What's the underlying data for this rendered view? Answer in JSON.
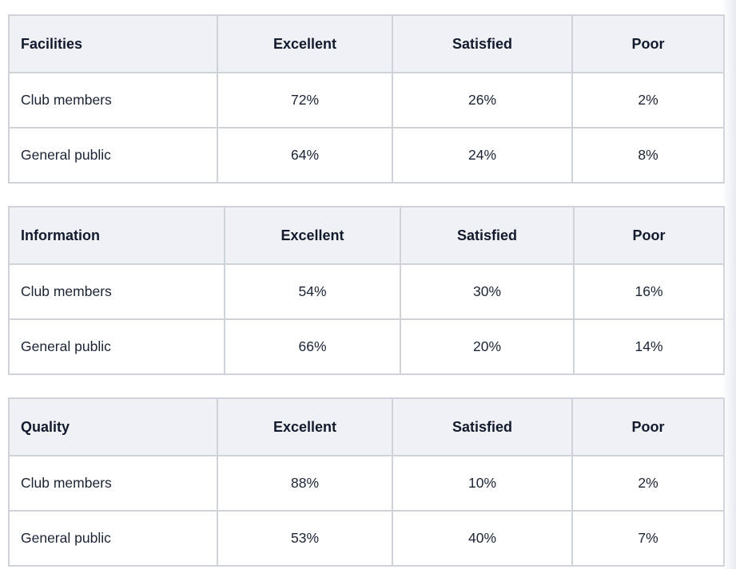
{
  "tables": [
    {
      "title": "Facilities",
      "columns": [
        "Excellent",
        "Satisfied",
        "Poor"
      ],
      "rows": [
        {
          "label": "Club members",
          "values": [
            "72%",
            "26%",
            "2%"
          ]
        },
        {
          "label": "General public",
          "values": [
            "64%",
            "24%",
            "8%"
          ]
        }
      ]
    },
    {
      "title": "Information",
      "columns": [
        "Excellent",
        "Satisfied",
        "Poor"
      ],
      "rows": [
        {
          "label": "Club members",
          "values": [
            "54%",
            "30%",
            "16%"
          ]
        },
        {
          "label": "General public",
          "values": [
            "66%",
            "20%",
            "14%"
          ]
        }
      ]
    },
    {
      "title": "Quality",
      "columns": [
        "Excellent",
        "Satisfied",
        "Poor"
      ],
      "rows": [
        {
          "label": "Club members",
          "values": [
            "88%",
            "10%",
            "2%"
          ]
        },
        {
          "label": "General public",
          "values": [
            "53%",
            "40%",
            "7%"
          ]
        }
      ]
    }
  ],
  "chart_data": {
    "type": "table",
    "tables": [
      {
        "title": "Facilities",
        "categories": [
          "Excellent",
          "Satisfied",
          "Poor"
        ],
        "series": [
          {
            "name": "Club members",
            "values": [
              72,
              26,
              2
            ]
          },
          {
            "name": "General public",
            "values": [
              64,
              24,
              8
            ]
          }
        ]
      },
      {
        "title": "Information",
        "categories": [
          "Excellent",
          "Satisfied",
          "Poor"
        ],
        "series": [
          {
            "name": "Club members",
            "values": [
              54,
              30,
              16
            ]
          },
          {
            "name": "General public",
            "values": [
              66,
              20,
              14
            ]
          }
        ]
      },
      {
        "title": "Quality",
        "categories": [
          "Excellent",
          "Satisfied",
          "Poor"
        ],
        "series": [
          {
            "name": "Club members",
            "values": [
              88,
              10,
              2
            ]
          },
          {
            "name": "General public",
            "values": [
              53,
              40,
              7
            ]
          }
        ]
      }
    ]
  },
  "colors": {
    "header_bg": "#f0f1f4",
    "border": "#ced3da",
    "text": "#172135",
    "page_bg": "#ffffff",
    "edge_fade": "#e7eaef"
  }
}
